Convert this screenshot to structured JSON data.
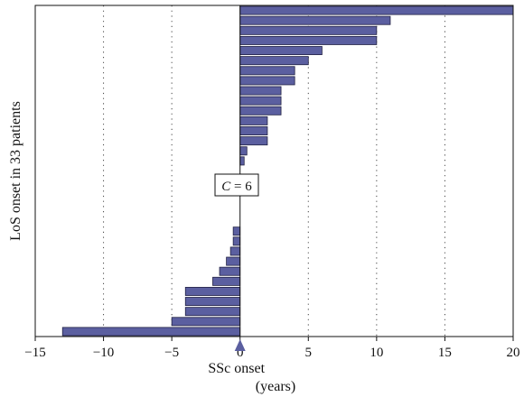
{
  "chart_data": {
    "type": "bar",
    "orientation": "horizontal",
    "title": "",
    "ylabel": "LoS onset in 33 patients",
    "xlabel_lines": [
      "SSc onset",
      "(years)"
    ],
    "xlim": [
      -15,
      20
    ],
    "xticks": [
      -15,
      -10,
      -5,
      0,
      5,
      10,
      15,
      20
    ],
    "xtick_labels": [
      "−15",
      "−10",
      "−5",
      "0",
      "5",
      "10",
      "15",
      "20"
    ],
    "grid": "vertical dotted",
    "zero_marker": "triangle",
    "annotation": {
      "italic": "C",
      "rest": " = 6"
    },
    "bar_color": "#5b5fa0",
    "bar_edge_color": "#222244",
    "values": [
      20,
      11,
      10,
      10,
      6,
      5,
      4,
      4,
      3,
      3,
      3,
      2,
      2,
      2,
      0.5,
      0.3,
      0,
      0,
      0,
      0,
      0,
      0,
      -0.5,
      -0.5,
      -0.7,
      -1,
      -1.5,
      -2,
      -4,
      -4,
      -4,
      -5,
      -13
    ]
  }
}
